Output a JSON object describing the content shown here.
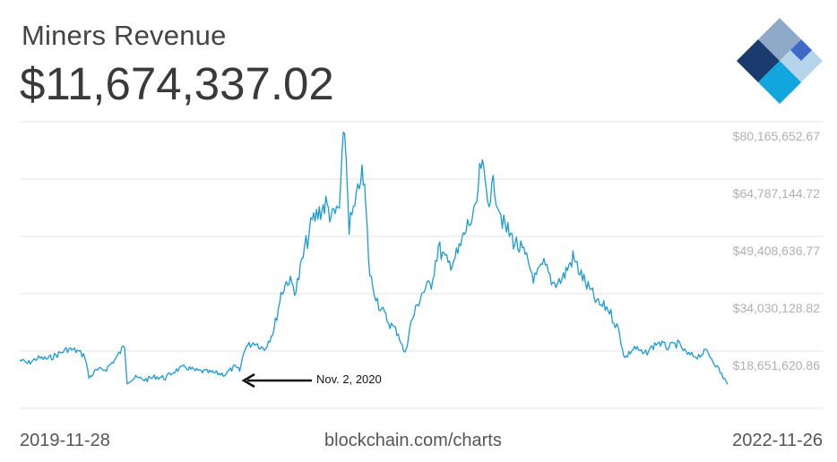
{
  "header": {
    "title": "Miners Revenue",
    "current_value": "$11,674,337.02",
    "logo_icon": "blockchain-logo-icon"
  },
  "footer": {
    "start_date": "2019-11-28",
    "source": "blockchain.com/charts",
    "end_date": "2022-11-26"
  },
  "annotation": {
    "label": "Nov. 2, 2020",
    "icon": "arrow-left-icon"
  },
  "colors": {
    "line": "#1a9bd7",
    "grid": "#e6e6e6",
    "tick_text": "#b0b0b0",
    "logo_dark": "#1b3b6f",
    "logo_blue": "#3d69c7",
    "logo_light": "#8fa9c8",
    "logo_cyan": "#11a6dd",
    "logo_pale": "#b6d4ea"
  },
  "chart_data": {
    "type": "line",
    "title": "Miners Revenue",
    "xlabel": "",
    "ylabel": "",
    "grid": true,
    "legend": "none",
    "y_axis_side": "right",
    "xlim": [
      "2019-11-28",
      "2022-11-26"
    ],
    "ylim": [
      5000000,
      85000000
    ],
    "ytick_labels": [
      "$80,165,652.67",
      "$64,787,144.72",
      "$49,408,636.77",
      "$34,030,128.82",
      "$18,651,620.86"
    ],
    "yticks": [
      80165652.67,
      64787144.72,
      49408636.77,
      34030128.82,
      18651620.86
    ],
    "series": [
      {
        "name": "",
        "points": [
          [
            "2019-11-28",
            18500000
          ],
          [
            "2019-12-10",
            17500000
          ],
          [
            "2019-12-25",
            19000000
          ],
          [
            "2020-01-10",
            18800000
          ],
          [
            "2020-01-25",
            20000000
          ],
          [
            "2020-02-10",
            21500000
          ],
          [
            "2020-02-25",
            21000000
          ],
          [
            "2020-03-08",
            19500000
          ],
          [
            "2020-03-14",
            13500000
          ],
          [
            "2020-03-25",
            15500000
          ],
          [
            "2020-04-10",
            16000000
          ],
          [
            "2020-04-25",
            19000000
          ],
          [
            "2020-05-08",
            22500000
          ],
          [
            "2020-05-12",
            12500000
          ],
          [
            "2020-05-25",
            13500000
          ],
          [
            "2020-06-10",
            13000000
          ],
          [
            "2020-06-25",
            13800000
          ],
          [
            "2020-07-10",
            13500000
          ],
          [
            "2020-07-25",
            15500000
          ],
          [
            "2020-08-10",
            16500000
          ],
          [
            "2020-08-25",
            15500000
          ],
          [
            "2020-09-10",
            15200000
          ],
          [
            "2020-09-25",
            14800000
          ],
          [
            "2020-10-10",
            14500000
          ],
          [
            "2020-10-25",
            16500000
          ],
          [
            "2020-11-02",
            15500000
          ],
          [
            "2020-11-10",
            22000000
          ],
          [
            "2020-11-25",
            23500000
          ],
          [
            "2020-12-10",
            21500000
          ],
          [
            "2020-12-25",
            27000000
          ],
          [
            "2021-01-05",
            37000000
          ],
          [
            "2021-01-15",
            41000000
          ],
          [
            "2021-01-28",
            38000000
          ],
          [
            "2021-02-10",
            49000000
          ],
          [
            "2021-02-22",
            57000000
          ],
          [
            "2021-03-05",
            60000000
          ],
          [
            "2021-03-15",
            62000000
          ],
          [
            "2021-03-25",
            58000000
          ],
          [
            "2021-04-05",
            61000000
          ],
          [
            "2021-04-13",
            84000000
          ],
          [
            "2021-04-20",
            56000000
          ],
          [
            "2021-05-01",
            62000000
          ],
          [
            "2021-05-08",
            71000000
          ],
          [
            "2021-05-14",
            66000000
          ],
          [
            "2021-05-22",
            42000000
          ],
          [
            "2021-06-05",
            34000000
          ],
          [
            "2021-06-20",
            29000000
          ],
          [
            "2021-07-05",
            26000000
          ],
          [
            "2021-07-15",
            20000000
          ],
          [
            "2021-07-25",
            29000000
          ],
          [
            "2021-08-10",
            37000000
          ],
          [
            "2021-08-25",
            40000000
          ],
          [
            "2021-09-05",
            50000000
          ],
          [
            "2021-09-20",
            45000000
          ],
          [
            "2021-10-05",
            48000000
          ],
          [
            "2021-10-20",
            56000000
          ],
          [
            "2021-11-01",
            59000000
          ],
          [
            "2021-11-10",
            73000000
          ],
          [
            "2021-11-20",
            64000000
          ],
          [
            "2021-12-01",
            67000000
          ],
          [
            "2021-12-15",
            56000000
          ],
          [
            "2021-12-30",
            52000000
          ],
          [
            "2022-01-15",
            48000000
          ],
          [
            "2022-02-01",
            41000000
          ],
          [
            "2022-02-15",
            45000000
          ],
          [
            "2022-03-01",
            40000000
          ],
          [
            "2022-03-15",
            41000000
          ],
          [
            "2022-04-01",
            47000000
          ],
          [
            "2022-04-20",
            40000000
          ],
          [
            "2022-05-10",
            34000000
          ],
          [
            "2022-05-25",
            33000000
          ],
          [
            "2022-06-10",
            27000000
          ],
          [
            "2022-06-20",
            19000000
          ],
          [
            "2022-07-05",
            22000000
          ],
          [
            "2022-07-20",
            20000000
          ],
          [
            "2022-08-10",
            23500000
          ],
          [
            "2022-08-25",
            22000000
          ],
          [
            "2022-09-10",
            23000000
          ],
          [
            "2022-09-25",
            20000000
          ],
          [
            "2022-10-10",
            19500000
          ],
          [
            "2022-10-25",
            21000000
          ],
          [
            "2022-11-10",
            16500000
          ],
          [
            "2022-11-26",
            11674337.02
          ]
        ]
      }
    ]
  }
}
